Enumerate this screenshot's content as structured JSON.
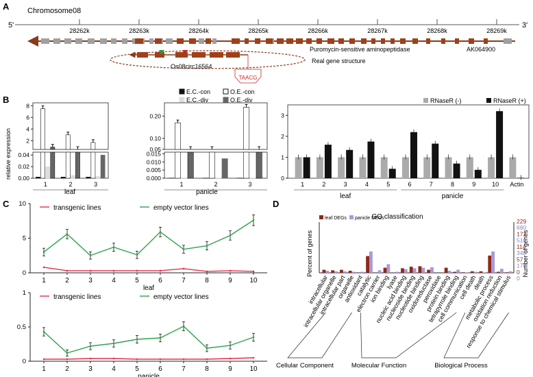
{
  "panels": {
    "a": "A",
    "b": "B",
    "c": "C",
    "d": "D"
  },
  "panelA": {
    "chromosome": "Chromosome08",
    "end5": "5'",
    "end3": "3'",
    "ticks": [
      "28262k",
      "28263k",
      "28264k",
      "28265k",
      "28266k",
      "28267k",
      "28268k",
      "28269k"
    ],
    "gene1": "Puromycin-sensitive aminopeptidase",
    "gene2": "AK064900",
    "circ": "Os08circ16564",
    "structure": "Real gene structure",
    "motif": "TAACG",
    "colors": {
      "exon": "#a0401a",
      "grey": "#a0a0a0",
      "green": "#2a9a3a",
      "red": "#cc2222"
    }
  },
  "panelB": {
    "ylabel": "relative expression",
    "legend": [
      "E.C.-con",
      "O.E.-con",
      "E.C.-div",
      "O.E.-div"
    ],
    "leafLabel": "leaf",
    "panicleLabel": "panicle",
    "rnaseLegend": [
      "RNaseR (-)",
      "RNaseR (+)"
    ]
  },
  "chart_data": [
    {
      "type": "bar",
      "title": "",
      "xlabel": "leaf",
      "ylabel": "relative expression",
      "categories": [
        "1",
        "2",
        "3"
      ],
      "axis_break": [
        0.04,
        0.5
      ],
      "yticks": [
        "8",
        "6",
        "4",
        "2",
        "0.04",
        "0.02",
        "0.00"
      ],
      "series": [
        {
          "name": "E.C.-con",
          "values": [
            0.002,
            0.002,
            0.002
          ]
        },
        {
          "name": "O.E.-con",
          "values": [
            7.5,
            3.0,
            1.7
          ]
        },
        {
          "name": "E.C.-div",
          "values": [
            0.02,
            0.005,
            0.003
          ]
        },
        {
          "name": "O.E.-div",
          "values": [
            0.9,
            0.5,
            0.04
          ]
        }
      ]
    },
    {
      "type": "bar",
      "title": "",
      "xlabel": "panicle",
      "ylabel": "",
      "categories": [
        "1",
        "2",
        "3"
      ],
      "axis_break": [
        0.015,
        0.05
      ],
      "yticks": [
        "0.20",
        "0.10",
        "0.05",
        "0.015",
        "0.010",
        "0.005",
        "0.000"
      ],
      "series": [
        {
          "name": "E.C.-con",
          "values": [
            0.0001,
            0.0001,
            0.0001
          ]
        },
        {
          "name": "O.E.-con",
          "values": [
            0.17,
            0.05,
            0.24
          ]
        },
        {
          "name": "E.C.-div",
          "values": [
            0.0002,
            0.0002,
            0.0002
          ]
        },
        {
          "name": "O.E.-div",
          "values": [
            0.04,
            0.012,
            0.03
          ]
        }
      ]
    },
    {
      "type": "bar",
      "title": "",
      "xlabel": "",
      "ylabel": "",
      "categories": [
        "1",
        "2",
        "3",
        "4",
        "5",
        "6",
        "7",
        "8",
        "9",
        "10",
        "Actin"
      ],
      "groups": [
        {
          "label": "leaf",
          "range": [
            1,
            5
          ]
        },
        {
          "label": "panicle",
          "range": [
            6,
            10
          ]
        }
      ],
      "ylim": [
        0,
        3.5
      ],
      "yticks": [
        "0",
        "1",
        "2",
        "3"
      ],
      "series": [
        {
          "name": "RNaseR (-)",
          "values": [
            1.0,
            1.0,
            1.0,
            1.0,
            1.0,
            1.0,
            1.0,
            1.0,
            1.0,
            1.0,
            1.0
          ]
        },
        {
          "name": "RNaseR (+)",
          "values": [
            1.0,
            1.6,
            1.35,
            1.75,
            0.45,
            2.2,
            1.65,
            0.7,
            0.4,
            3.2,
            0.02
          ]
        }
      ]
    },
    {
      "type": "line",
      "title": "",
      "xlabel": "leaf",
      "ylabel": "",
      "x": [
        1,
        2,
        3,
        4,
        5,
        6,
        7,
        8,
        9,
        10
      ],
      "ylim": [
        0,
        10
      ],
      "yticks": [
        "0",
        "5",
        "10"
      ],
      "series": [
        {
          "name": "transgenic lines",
          "color": "#e0304a",
          "values": [
            0.8,
            0.3,
            0.3,
            0.3,
            0.3,
            0.3,
            0.6,
            0.2,
            0.3,
            0.2
          ]
        },
        {
          "name": "empty vector lines",
          "color": "#2ca24a",
          "values": [
            3.0,
            5.6,
            2.5,
            3.7,
            2.6,
            5.9,
            3.4,
            3.9,
            5.4,
            7.6
          ]
        }
      ]
    },
    {
      "type": "line",
      "title": "",
      "xlabel": "panicle",
      "ylabel": "",
      "x": [
        1,
        2,
        3,
        4,
        5,
        6,
        7,
        8,
        9,
        10
      ],
      "ylim": [
        0,
        1
      ],
      "yticks": [
        "0",
        "0.5",
        "1"
      ],
      "series": [
        {
          "name": "transgenic lines",
          "color": "#e0304a",
          "values": [
            0.03,
            0.03,
            0.04,
            0.04,
            0.03,
            0.03,
            0.03,
            0.03,
            0.04,
            0.05
          ]
        },
        {
          "name": "empty vector lines",
          "color": "#2ca24a",
          "values": [
            0.43,
            0.12,
            0.22,
            0.26,
            0.32,
            0.34,
            0.51,
            0.19,
            0.23,
            0.35
          ]
        }
      ]
    },
    {
      "type": "bar",
      "title": "GO classification",
      "xlabel": "",
      "ylabel": "Percent of genes",
      "y2label": "Number of genes",
      "ylim": [
        0,
        100
      ],
      "categories": [
        "intracellular",
        "intracellular organelle",
        "intracellular part",
        "organelle",
        "antioxidant",
        "catalytic",
        "electron carrier",
        "ion binding",
        "lyase",
        "nucleic acid binding",
        "nucleoside binding",
        "nucleotide binding",
        "oxidoreductase",
        "peroxidase",
        "protein binding",
        "tetrapyrrole binding",
        "cell communication",
        "cell death",
        "death",
        "metabolic process",
        "oxidation reduction",
        "response to chemical stimulus"
      ],
      "groups": [
        {
          "label": "Cellular Component",
          "range": [
            0,
            3
          ]
        },
        {
          "label": "Molecular Function",
          "range": [
            4,
            15
          ]
        },
        {
          "label": "Biological Process",
          "range": [
            16,
            21
          ]
        }
      ],
      "y2_leaf": [
        "229",
        "172",
        "114",
        "57",
        "0"
      ],
      "y2_panicle": [
        "680",
        "510",
        "340",
        "170",
        "0"
      ],
      "series": [
        {
          "name": "leaf DEGs",
          "color": "#8c2a1c",
          "values": [
            6,
            5,
            6,
            4,
            0,
            33,
            0,
            10,
            0,
            9,
            12,
            13,
            6,
            0,
            10,
            2,
            1,
            3,
            3,
            34,
            2,
            1
          ]
        },
        {
          "name": "panicle DEGs",
          "color": "#a89ad6",
          "values": [
            4,
            3,
            3,
            2,
            2,
            42,
            5,
            17,
            2,
            7,
            9,
            10,
            11,
            0,
            4,
            6,
            1,
            2,
            1,
            42,
            8,
            3
          ]
        }
      ]
    }
  ]
}
